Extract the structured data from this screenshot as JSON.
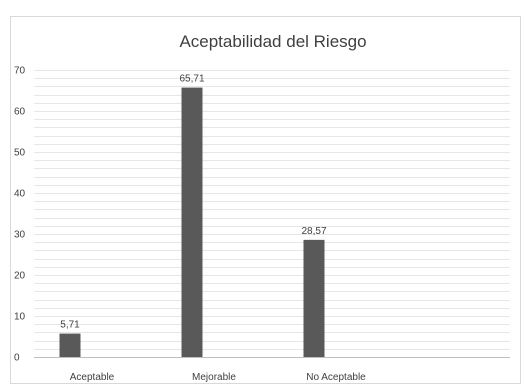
{
  "chart_data": {
    "type": "bar",
    "title": "Aceptabilidad del Riesgo",
    "xlabel": "",
    "ylabel": "",
    "categories": [
      "Aceptable",
      "Mejorable",
      "No Aceptable"
    ],
    "values": [
      5.71,
      65.71,
      28.57
    ],
    "data_labels": [
      "5,71",
      "65,71",
      "28,57"
    ],
    "y_ticks": [
      "0",
      "10",
      "20",
      "30",
      "40",
      "50",
      "60",
      "70"
    ],
    "ylim": [
      0,
      70
    ],
    "minor_step": 2,
    "grid": true,
    "legend": "none",
    "bar_color": "#595959",
    "grid_color": "#e6e6e6",
    "axis_color": "#bfbfbf"
  }
}
